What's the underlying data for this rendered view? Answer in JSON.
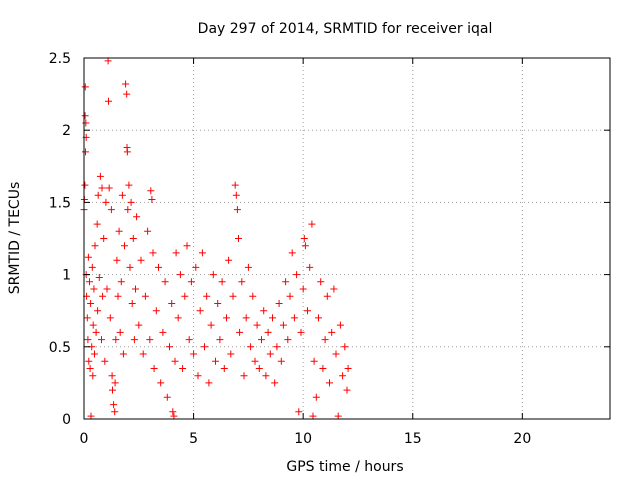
{
  "chart_data": {
    "type": "scatter",
    "title": "Day 297 of 2014, SRMTID for receiver iqal",
    "xlabel": "GPS time / hours",
    "ylabel": "SRMTID / TECUs",
    "xlim": [
      0,
      24
    ],
    "ylim": [
      0,
      2.5
    ],
    "x_ticks": [
      0,
      5,
      10,
      15,
      20
    ],
    "x_tick_labels": [
      "0",
      "5",
      "10",
      "15",
      "20"
    ],
    "y_ticks": [
      0,
      0.5,
      1,
      1.5,
      2,
      2.5
    ],
    "y_tick_labels": [
      "0",
      "0.5",
      "1",
      "1.5",
      "2",
      "2.5"
    ],
    "grid": true,
    "marker": "+",
    "marker_color": "#ff0000",
    "series": [
      {
        "name": "SRMTID",
        "points": [
          [
            0.0,
            1.45
          ],
          [
            0.02,
            1.52
          ],
          [
            0.04,
            1.62
          ],
          [
            0.05,
            2.1
          ],
          [
            0.06,
            2.3
          ],
          [
            0.07,
            1.85
          ],
          [
            0.08,
            2.05
          ],
          [
            0.1,
            1.95
          ],
          [
            0.1,
            1.0
          ],
          [
            0.12,
            0.85
          ],
          [
            0.15,
            0.7
          ],
          [
            0.18,
            0.55
          ],
          [
            0.2,
            1.12
          ],
          [
            0.22,
            0.4
          ],
          [
            0.25,
            0.95
          ],
          [
            0.28,
            0.35
          ],
          [
            0.3,
            0.8
          ],
          [
            0.32,
            0.02
          ],
          [
            0.35,
            0.5
          ],
          [
            0.38,
            1.05
          ],
          [
            0.4,
            0.3
          ],
          [
            0.42,
            0.65
          ],
          [
            0.45,
            0.9
          ],
          [
            0.48,
            0.45
          ],
          [
            0.5,
            1.2
          ],
          [
            0.55,
            0.6
          ],
          [
            0.6,
            1.35
          ],
          [
            0.62,
            0.75
          ],
          [
            0.65,
            1.55
          ],
          [
            0.7,
            0.98
          ],
          [
            0.75,
            1.68
          ],
          [
            0.8,
            0.55
          ],
          [
            0.82,
            1.6
          ],
          [
            0.85,
            0.85
          ],
          [
            0.9,
            1.25
          ],
          [
            0.95,
            0.4
          ],
          [
            1.0,
            1.5
          ],
          [
            1.05,
            0.9
          ],
          [
            1.1,
            2.48
          ],
          [
            1.12,
            2.2
          ],
          [
            1.15,
            1.6
          ],
          [
            1.2,
            0.7
          ],
          [
            1.25,
            1.45
          ],
          [
            1.28,
            0.3
          ],
          [
            1.3,
            0.2
          ],
          [
            1.35,
            0.1
          ],
          [
            1.4,
            0.05
          ],
          [
            1.42,
            0.25
          ],
          [
            1.45,
            0.55
          ],
          [
            1.5,
            1.1
          ],
          [
            1.55,
            0.85
          ],
          [
            1.6,
            1.3
          ],
          [
            1.65,
            0.6
          ],
          [
            1.7,
            0.95
          ],
          [
            1.75,
            1.55
          ],
          [
            1.8,
            0.45
          ],
          [
            1.85,
            1.2
          ],
          [
            1.9,
            2.32
          ],
          [
            1.95,
            2.25
          ],
          [
            1.96,
            1.88
          ],
          [
            1.98,
            1.85
          ],
          [
            2.0,
            1.45
          ],
          [
            2.05,
            1.62
          ],
          [
            2.1,
            1.05
          ],
          [
            2.15,
            1.5
          ],
          [
            2.2,
            0.8
          ],
          [
            2.25,
            1.25
          ],
          [
            2.3,
            0.55
          ],
          [
            2.35,
            0.9
          ],
          [
            2.4,
            1.4
          ],
          [
            2.5,
            0.65
          ],
          [
            2.6,
            1.1
          ],
          [
            2.7,
            0.45
          ],
          [
            2.8,
            0.85
          ],
          [
            2.9,
            1.3
          ],
          [
            3.0,
            0.55
          ],
          [
            3.05,
            1.58
          ],
          [
            3.1,
            1.52
          ],
          [
            3.15,
            1.15
          ],
          [
            3.2,
            0.35
          ],
          [
            3.3,
            0.75
          ],
          [
            3.4,
            1.05
          ],
          [
            3.5,
            0.25
          ],
          [
            3.6,
            0.6
          ],
          [
            3.7,
            0.95
          ],
          [
            3.8,
            0.15
          ],
          [
            3.9,
            0.5
          ],
          [
            4.0,
            0.8
          ],
          [
            4.05,
            0.05
          ],
          [
            4.1,
            0.02
          ],
          [
            4.15,
            0.4
          ],
          [
            4.2,
            1.15
          ],
          [
            4.3,
            0.7
          ],
          [
            4.4,
            1.0
          ],
          [
            4.5,
            0.35
          ],
          [
            4.6,
            0.85
          ],
          [
            4.7,
            1.2
          ],
          [
            4.8,
            0.55
          ],
          [
            4.9,
            0.95
          ],
          [
            5.0,
            0.45
          ],
          [
            5.1,
            1.05
          ],
          [
            5.2,
            0.3
          ],
          [
            5.3,
            0.75
          ],
          [
            5.4,
            1.15
          ],
          [
            5.5,
            0.5
          ],
          [
            5.6,
            0.85
          ],
          [
            5.7,
            0.25
          ],
          [
            5.8,
            0.65
          ],
          [
            5.9,
            1.0
          ],
          [
            6.0,
            0.4
          ],
          [
            6.1,
            0.8
          ],
          [
            6.2,
            0.55
          ],
          [
            6.3,
            0.95
          ],
          [
            6.4,
            0.35
          ],
          [
            6.5,
            0.7
          ],
          [
            6.6,
            1.1
          ],
          [
            6.7,
            0.45
          ],
          [
            6.8,
            0.85
          ],
          [
            6.9,
            1.62
          ],
          [
            6.95,
            1.55
          ],
          [
            7.0,
            1.45
          ],
          [
            7.05,
            1.25
          ],
          [
            7.1,
            0.6
          ],
          [
            7.2,
            0.95
          ],
          [
            7.3,
            0.3
          ],
          [
            7.4,
            0.7
          ],
          [
            7.5,
            1.05
          ],
          [
            7.6,
            0.5
          ],
          [
            7.7,
            0.85
          ],
          [
            7.8,
            0.4
          ],
          [
            7.9,
            0.65
          ],
          [
            8.0,
            0.35
          ],
          [
            8.1,
            0.55
          ],
          [
            8.2,
            0.75
          ],
          [
            8.3,
            0.3
          ],
          [
            8.4,
            0.6
          ],
          [
            8.5,
            0.45
          ],
          [
            8.6,
            0.7
          ],
          [
            8.7,
            0.25
          ],
          [
            8.8,
            0.5
          ],
          [
            8.9,
            0.8
          ],
          [
            9.0,
            0.4
          ],
          [
            9.1,
            0.65
          ],
          [
            9.2,
            0.95
          ],
          [
            9.3,
            0.55
          ],
          [
            9.4,
            0.85
          ],
          [
            9.5,
            1.15
          ],
          [
            9.6,
            0.7
          ],
          [
            9.7,
            1.0
          ],
          [
            9.8,
            0.05
          ],
          [
            9.9,
            0.6
          ],
          [
            10.0,
            0.9
          ],
          [
            10.05,
            1.25
          ],
          [
            10.1,
            1.2
          ],
          [
            10.2,
            0.75
          ],
          [
            10.3,
            1.05
          ],
          [
            10.4,
            1.35
          ],
          [
            10.45,
            0.02
          ],
          [
            10.5,
            0.4
          ],
          [
            10.6,
            0.15
          ],
          [
            10.7,
            0.7
          ],
          [
            10.8,
            0.95
          ],
          [
            10.9,
            0.35
          ],
          [
            11.0,
            0.55
          ],
          [
            11.1,
            0.85
          ],
          [
            11.2,
            0.25
          ],
          [
            11.3,
            0.6
          ],
          [
            11.4,
            0.9
          ],
          [
            11.5,
            0.45
          ],
          [
            11.6,
            0.02
          ],
          [
            11.7,
            0.65
          ],
          [
            11.8,
            0.3
          ],
          [
            11.9,
            0.5
          ],
          [
            12.0,
            0.2
          ],
          [
            12.05,
            0.35
          ]
        ]
      }
    ]
  }
}
